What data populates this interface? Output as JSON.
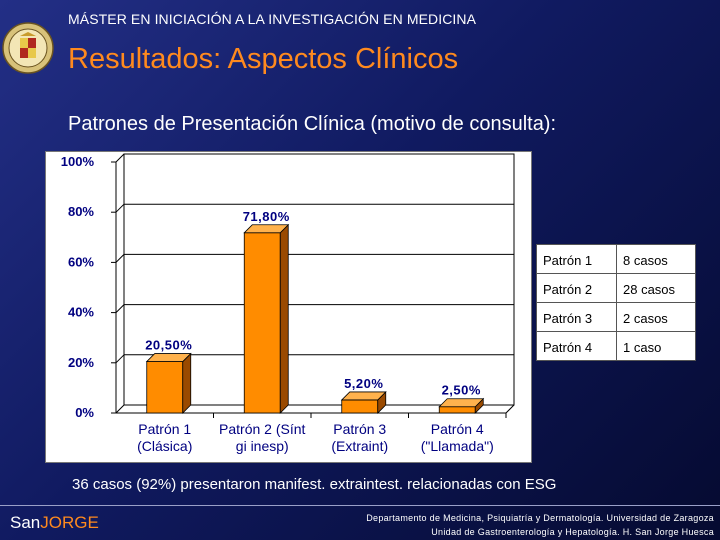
{
  "header": {
    "master": "MÁSTER EN INICIACIÓN A LA INVESTIGACIÓN EN MEDICINA",
    "title": "Resultados: Aspectos Clínicos"
  },
  "subtitle": "Patrones de Presentación Clínica (motivo de consulta):",
  "chart_data": {
    "type": "bar",
    "categories": [
      [
        "Patrón 1",
        "(Clásica)"
      ],
      [
        "Patrón 2 (Sínt",
        "gi inesp)"
      ],
      [
        "Patrón 3",
        "(Extraint)"
      ],
      [
        "Patrón 4",
        "(\"Llamada\")"
      ]
    ],
    "values": [
      20.5,
      71.8,
      5.2,
      2.5
    ],
    "value_labels": [
      "20,50%",
      "71,80%",
      "5,20%",
      "2,50%"
    ],
    "ylim": [
      0,
      100
    ],
    "yticks": [
      0,
      20,
      40,
      60,
      80,
      100
    ],
    "ytick_labels": [
      "0%",
      "20%",
      "40%",
      "60%",
      "80%",
      "100%"
    ],
    "bar_color": "#ff8c00",
    "bar_side_color": "#9a4a00",
    "bar_top_color": "#ffb24d",
    "label_color": "#000080"
  },
  "legend_table": [
    [
      "Patrón 1",
      "8 casos"
    ],
    [
      "Patrón 2",
      "28 casos"
    ],
    [
      "Patrón 3",
      "2 casos"
    ],
    [
      "Patrón 4",
      "1 caso"
    ]
  ],
  "conclusion": "36 casos (92%) presentaron manifest. extraintest. relacionadas con ESG",
  "footer": {
    "logo_san": "San",
    "logo_jorge": "JORGE",
    "dept_line1": "Departamento de Medicina, Psiquiatría y Dermatología. Universidad de Zaragoza",
    "dept_line2": "Unidad de Gastroenterología y Hepatología. H. San Jorge Huesca"
  }
}
